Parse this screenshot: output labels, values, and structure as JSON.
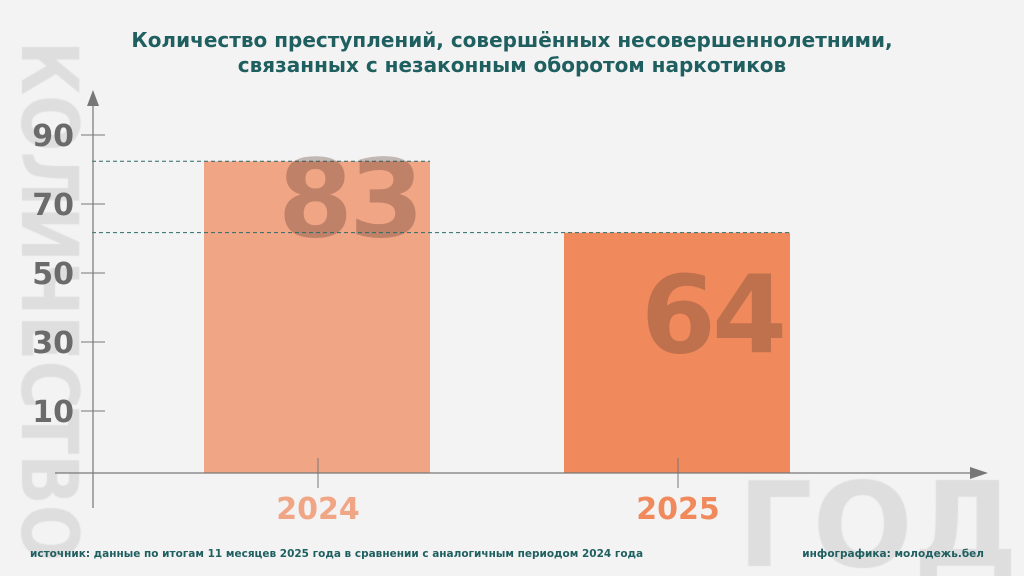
{
  "watermarks": {
    "vertical": "КОЛИЧЕСТВО",
    "horizontal": "ГОД"
  },
  "title_line1": "Количество преступлений, совершённых несовершеннолетними,",
  "title_line2": "связанных с незаконным оборотом наркотиков",
  "chart_data": {
    "type": "bar",
    "categories": [
      "2024",
      "2025"
    ],
    "values": [
      83,
      64
    ],
    "data_labels": [
      "83",
      "64"
    ],
    "y_ticks": [
      "90",
      "70",
      "50",
      "30",
      "10"
    ],
    "ylim": [
      0,
      90
    ],
    "grid": false,
    "colors": {
      "2024": "#f0a585",
      "2025": "#f08a5c",
      "title": "#1f5f60",
      "axis": "#777777",
      "ticks": "#6b6b6b"
    }
  },
  "footer": {
    "source": "источник: данные по итогам 11 месяцев 2025 года в сравнении с аналогичным периодом 2024 года",
    "credit": "инфографика: молодежь.бел"
  }
}
